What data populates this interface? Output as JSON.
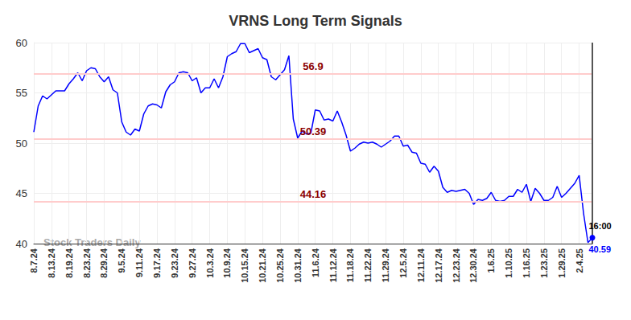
{
  "chart_data": {
    "type": "line",
    "title": "VRNS Long Term Signals",
    "watermark": "Stock Traders Daily",
    "end_label": "16:00",
    "color": "#0000ff",
    "grid": true,
    "ylim": [
      40,
      60
    ],
    "yticks": [
      40,
      45,
      50,
      55,
      60
    ],
    "levels": [
      56.9,
      50.39,
      44.16
    ],
    "categories": [
      "8.7.24",
      null,
      null,
      null,
      "8.13.24",
      null,
      null,
      null,
      "8.19.24",
      null,
      null,
      null,
      "8.23.24",
      null,
      null,
      null,
      "8.29.24",
      null,
      null,
      null,
      "9.5.24",
      null,
      null,
      null,
      "9.11.24",
      null,
      null,
      null,
      "9.17.24",
      null,
      null,
      null,
      "9.23.24",
      null,
      null,
      null,
      "9.27.24",
      null,
      null,
      null,
      "10.3.24",
      null,
      null,
      null,
      "10.9.24",
      null,
      null,
      null,
      "10.15.24",
      null,
      null,
      null,
      "10.21.24",
      null,
      null,
      null,
      "10.25.24",
      null,
      null,
      null,
      "10.31.24",
      null,
      null,
      null,
      "11.6.24",
      null,
      null,
      null,
      "11.12.24",
      null,
      null,
      null,
      "11.18.24",
      null,
      null,
      null,
      "11.22.24",
      null,
      null,
      null,
      "11.29.24",
      null,
      null,
      null,
      "12.5.24",
      null,
      null,
      null,
      "12.11.24",
      null,
      null,
      null,
      "12.17.24",
      null,
      null,
      null,
      "12.23.24",
      null,
      null,
      null,
      "12.30.24",
      null,
      null,
      null,
      "1.6.25",
      null,
      null,
      null,
      "1.10.25",
      null,
      null,
      null,
      "1.16.25",
      null,
      null,
      null,
      "1.23.25",
      null,
      null,
      null,
      "1.29.25",
      null,
      null,
      null,
      "2.4.25",
      null,
      null,
      null
    ],
    "values": [
      51.1,
      53.7,
      54.7,
      54.4,
      54.8,
      55.2,
      55.2,
      55.2,
      55.9,
      56.4,
      57.0,
      56.2,
      57.2,
      57.5,
      57.4,
      56.6,
      56.1,
      56.6,
      55.3,
      55.0,
      52.1,
      51.1,
      50.8,
      51.4,
      51.2,
      52.9,
      53.7,
      53.9,
      53.8,
      53.5,
      55.1,
      55.8,
      56.1,
      57.0,
      57.1,
      57.0,
      56.2,
      56.5,
      55.0,
      55.5,
      55.5,
      56.4,
      55.5,
      56.6,
      58.6,
      58.9,
      59.1,
      59.9,
      59.9,
      59.0,
      59.2,
      59.4,
      58.5,
      58.3,
      56.6,
      56.3,
      56.8,
      57.3,
      58.7,
      52.4,
      50.5,
      51.2,
      50.9,
      51.0,
      53.3,
      53.2,
      52.3,
      52.4,
      52.2,
      53.2,
      52.1,
      50.8,
      49.2,
      49.5,
      49.9,
      50.1,
      50.0,
      50.1,
      49.9,
      49.6,
      49.9,
      50.2,
      50.7,
      50.7,
      49.7,
      49.8,
      49.1,
      49.0,
      48.0,
      47.9,
      47.1,
      47.7,
      47.2,
      45.6,
      45.1,
      45.3,
      45.2,
      45.3,
      45.4,
      45.0,
      43.9,
      44.4,
      44.3,
      44.5,
      45.1,
      44.3,
      44.2,
      44.3,
      44.7,
      44.7,
      45.4,
      45.1,
      45.9,
      44.2,
      45.5,
      45.0,
      44.3,
      44.3,
      44.6,
      45.7,
      44.6,
      45.0,
      45.5,
      46.0,
      46.8,
      43.0,
      40.1,
      40.59
    ]
  }
}
